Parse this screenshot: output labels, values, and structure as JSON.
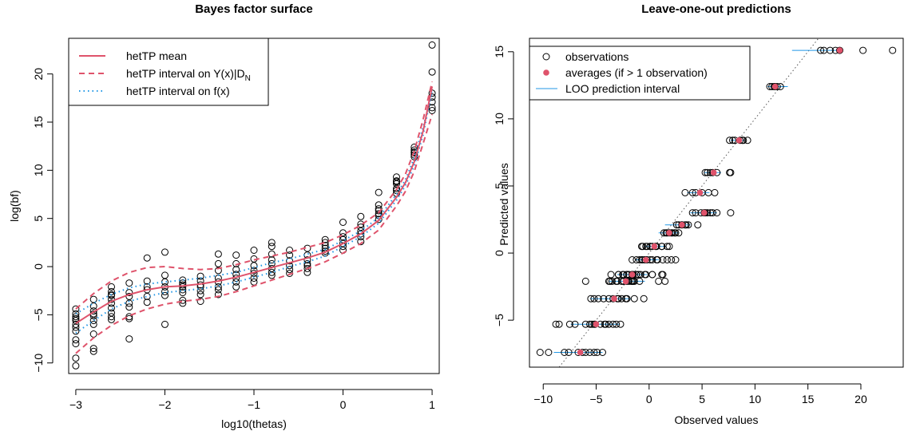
{
  "colors": {
    "mean": "#DF536B",
    "interval": "#DF536B",
    "latent": "#2297E6",
    "obs": "#000000",
    "avg": "#DF536B",
    "loo": "#2297E6",
    "dots": "#555555"
  },
  "chart_data": [
    {
      "type": "scatter",
      "title": "Bayes factor surface",
      "xlabel": "log10(thetas)",
      "ylabel": "log(bf)",
      "xlim": [
        -3.08,
        1.08
      ],
      "ylim": [
        -11.1,
        23.7
      ],
      "xticks": [
        -3,
        -2,
        -1,
        0,
        1
      ],
      "yticks": [
        -10,
        -5,
        0,
        5,
        10,
        15,
        20
      ],
      "legend": {
        "position": "top-left",
        "entries": [
          {
            "label": "hetTP mean",
            "style": "solid"
          },
          {
            "label": "hetTP interval on Y(x)|D",
            "sub": "N",
            "style": "dashed"
          },
          {
            "label": "hetTP interval on f(x)",
            "style": "dotted"
          }
        ]
      },
      "points": {
        "x": [
          -3,
          -3,
          -3,
          -3,
          -3,
          -3,
          -3,
          -3,
          -3,
          -3,
          -3,
          -3,
          -2.8,
          -2.8,
          -2.8,
          -2.8,
          -2.8,
          -2.8,
          -2.8,
          -2.8,
          -2.8,
          -2.8,
          -2.6,
          -2.6,
          -2.6,
          -2.6,
          -2.6,
          -2.6,
          -2.6,
          -2.6,
          -2.6,
          -2.6,
          -2.4,
          -2.4,
          -2.4,
          -2.4,
          -2.4,
          -2.4,
          -2.4,
          -2.4,
          -2.2,
          -2.2,
          -2.2,
          -2.2,
          -2.2,
          -2.2,
          -2,
          -2,
          -2,
          -2,
          -2,
          -2,
          -2,
          -1.8,
          -1.8,
          -1.8,
          -1.8,
          -1.8,
          -1.8,
          -1.8,
          -1.8,
          -1.6,
          -1.6,
          -1.6,
          -1.6,
          -1.6,
          -1.6,
          -1.6,
          -1.4,
          -1.4,
          -1.4,
          -1.4,
          -1.4,
          -1.4,
          -1.4,
          -1.4,
          -1.2,
          -1.2,
          -1.2,
          -1.2,
          -1.2,
          -1.2,
          -1.2,
          -1,
          -1,
          -1,
          -1,
          -1,
          -1,
          -1,
          -0.8,
          -0.8,
          -0.8,
          -0.8,
          -0.8,
          -0.8,
          -0.8,
          -0.8,
          -0.6,
          -0.6,
          -0.6,
          -0.6,
          -0.6,
          -0.6,
          -0.4,
          -0.4,
          -0.4,
          -0.4,
          -0.4,
          -0.4,
          -0.4,
          -0.2,
          -0.2,
          -0.2,
          -0.2,
          -0.2,
          -0.2,
          0,
          0,
          0,
          0,
          0,
          0,
          0,
          0.2,
          0.2,
          0.2,
          0.2,
          0.2,
          0.2,
          0.2,
          0.4,
          0.4,
          0.4,
          0.4,
          0.4,
          0.4,
          0.4,
          0.6,
          0.6,
          0.6,
          0.6,
          0.6,
          0.6,
          0.6,
          0.8,
          0.8,
          0.8,
          0.8,
          0.8,
          0.8,
          1,
          1,
          1,
          1,
          1,
          1,
          1
        ],
        "y": [
          -4.4,
          -4.9,
          -5.2,
          -5.6,
          -6.0,
          -6.3,
          -6.7,
          -7.6,
          -8.0,
          -9.5,
          -10.3,
          -5.4,
          -3.4,
          -4.1,
          -4.6,
          -5.1,
          -5.6,
          -6.0,
          -7.0,
          -8.5,
          -8.8,
          -4.9,
          -2.1,
          -2.6,
          -3.0,
          -3.4,
          -3.8,
          -4.3,
          -4.8,
          -5.2,
          -5.5,
          -2.9,
          -1.7,
          -2.7,
          -3.1,
          -3.8,
          -4.2,
          -5.2,
          -5.4,
          -7.5,
          0.9,
          -1.5,
          -2.1,
          -2.4,
          -3.1,
          -3.7,
          1.5,
          -0.9,
          -1.6,
          -2.1,
          -2.6,
          -3.0,
          -6.0,
          -1.4,
          -1.7,
          -2.1,
          -2.4,
          -2.7,
          -3.5,
          -3.8,
          -1.9,
          -1.0,
          -1.5,
          -1.9,
          -2.1,
          -2.5,
          -2.9,
          -3.6,
          1.3,
          0.3,
          -0.4,
          -1.2,
          -1.6,
          -2.1,
          -2.4,
          -2.9,
          1.2,
          0.3,
          -0.3,
          -0.8,
          -1.2,
          -1.6,
          -2.1,
          1.7,
          0.8,
          0.1,
          -0.4,
          -0.7,
          -1.2,
          -1.6,
          2.5,
          2.1,
          1.3,
          0.7,
          0.3,
          -0.2,
          -0.6,
          -0.9,
          1.7,
          1.2,
          0.6,
          0.1,
          -0.3,
          -0.7,
          1.9,
          1.2,
          0.7,
          0.3,
          0.1,
          -0.2,
          -0.6,
          2.8,
          2.5,
          2.2,
          1.9,
          1.6,
          1.4,
          4.6,
          3.5,
          3.1,
          2.8,
          2.4,
          2.1,
          1.7,
          5.2,
          4.4,
          4.1,
          3.7,
          3.4,
          3.1,
          2.6,
          7.7,
          6.4,
          6.0,
          5.8,
          5.5,
          5.3,
          4.9,
          9.3,
          8.9,
          8.6,
          8.1,
          7.9,
          7.6,
          8.8,
          12.4,
          12.1,
          11.8,
          11.6,
          11.4,
          11.9,
          23.0,
          20.2,
          18.0,
          17.6,
          17.1,
          16.5,
          16.2
        ]
      },
      "curve_x": [
        -3,
        -2.8,
        -2.6,
        -2.4,
        -2.2,
        -2,
        -1.8,
        -1.6,
        -1.4,
        -1.2,
        -1,
        -0.8,
        -0.6,
        -0.4,
        -0.2,
        0,
        0.2,
        0.4,
        0.6,
        0.7,
        0.8,
        0.9,
        1
      ],
      "series": [
        {
          "role": "mean",
          "y": [
            -5.9,
            -4.7,
            -3.6,
            -2.9,
            -2.4,
            -2.1,
            -2.0,
            -1.8,
            -1.5,
            -1.1,
            -0.6,
            -0.1,
            0.4,
            0.9,
            1.5,
            2.4,
            3.4,
            4.8,
            7.2,
            8.7,
            10.9,
            14.1,
            18.7
          ]
        },
        {
          "role": "y-upper",
          "y": [
            -4.4,
            -2.8,
            -1.5,
            -0.6,
            -0.1,
            0.0,
            -0.2,
            -0.3,
            -0.2,
            0.2,
            0.7,
            1.1,
            1.5,
            2.0,
            2.5,
            3.3,
            4.3,
            5.6,
            8.0,
            9.6,
            12.0,
            15.3,
            19.2
          ]
        },
        {
          "role": "y-lower",
          "y": [
            -9.0,
            -7.4,
            -6.1,
            -5.1,
            -4.4,
            -3.9,
            -3.6,
            -3.4,
            -3.1,
            -2.6,
            -2.0,
            -1.4,
            -0.8,
            -0.2,
            0.5,
            1.4,
            2.4,
            3.8,
            6.3,
            7.8,
            9.9,
            12.8,
            15.8
          ]
        },
        {
          "role": "f-upper",
          "y": [
            -4.9,
            -3.8,
            -2.9,
            -2.2,
            -1.8,
            -1.6,
            -1.4,
            -1.2,
            -0.9,
            -0.6,
            -0.1,
            0.4,
            0.8,
            1.3,
            1.8,
            2.7,
            3.7,
            5.1,
            7.5,
            9.0,
            11.3,
            14.5,
            18.1
          ]
        },
        {
          "role": "f-lower",
          "y": [
            -6.9,
            -5.6,
            -4.4,
            -3.6,
            -3.1,
            -2.7,
            -2.5,
            -2.3,
            -2.0,
            -1.6,
            -1.1,
            -0.6,
            0.0,
            0.5,
            1.1,
            2.1,
            3.1,
            4.5,
            6.9,
            8.4,
            10.5,
            13.7,
            18.3
          ]
        }
      ]
    },
    {
      "type": "scatter",
      "title": "Leave-one-out predictions",
      "xlabel": "Observed values",
      "ylabel": "Predicted values",
      "xlim": [
        -11.3,
        24.0
      ],
      "ylim": [
        -8.5,
        16.0
      ],
      "xticks": [
        -10,
        -5,
        0,
        5,
        10,
        15,
        20
      ],
      "yticks": [
        -5,
        0,
        5,
        10,
        15
      ],
      "legend": {
        "position": "top-left",
        "entries": [
          {
            "label": "observations",
            "style": "open-circle"
          },
          {
            "label": "averages (if > 1 observation)",
            "style": "filled-circle"
          },
          {
            "label": "LOO prediction interval",
            "style": "line"
          }
        ]
      },
      "levels": [
        {
          "pred": -7.4,
          "obs": [
            -10.3,
            -9.5,
            -8.0,
            -7.6,
            -6.7,
            -6.3,
            -6.0,
            -5.6,
            -5.2,
            -4.9,
            -4.4
          ],
          "avg": -6.5,
          "lo": -9.0,
          "hi": -4.4
        },
        {
          "pred": -5.3,
          "obs": [
            -8.8,
            -8.5,
            -7.0,
            -6.0,
            -5.6,
            -5.1,
            -4.6,
            -4.1,
            -3.4,
            -7.5,
            -5.4,
            -5.2,
            -4.2,
            -3.8,
            -3.1,
            -2.7
          ],
          "avg": -5.0,
          "lo": -7.4,
          "hi": -2.8
        },
        {
          "pred": -3.4,
          "obs": [
            -5.5,
            -5.2,
            -4.8,
            -4.3,
            -3.8,
            -3.4,
            -3.0,
            -2.6,
            -2.1,
            -2.9,
            -2.2,
            -1.4,
            -0.5
          ],
          "avg": -3.3,
          "lo": -5.6,
          "hi": -1.7
        },
        {
          "pred": -2.1,
          "obs": [
            -3.7,
            -3.1,
            -2.4,
            -2.1,
            -1.5,
            0.9,
            -6.0,
            -3.0,
            -2.6,
            -1.6,
            -0.9,
            1.5,
            -3.8,
            -3.5,
            -2.4,
            -1.9,
            -1.7,
            -1.4
          ],
          "avg": -2.2,
          "lo": -3.8,
          "hi": -0.4
        },
        {
          "pred": -1.6,
          "obs": [
            -3.6,
            -2.9,
            -2.5,
            -2.1,
            -1.9,
            -1.5,
            -1.0,
            -2.9,
            -2.4,
            -2.1,
            -1.6,
            -1.2,
            -0.4,
            0.3,
            1.3,
            -2.1,
            -1.6,
            -1.2,
            -0.8,
            -0.3,
            0.3,
            1.2
          ],
          "avg": -1.6,
          "lo": -3.0,
          "hi": -0.2
        },
        {
          "pred": -0.5,
          "obs": [
            -1.6,
            -1.2,
            -0.7,
            -0.4,
            0.1,
            0.8,
            1.7,
            -0.9,
            -0.6,
            -0.2,
            0.3,
            0.7,
            1.3,
            2.1,
            2.5
          ],
          "avg": -0.3,
          "lo": -1.3,
          "hi": 0.9
        },
        {
          "pred": 0.5,
          "obs": [
            -0.7,
            -0.3,
            0.1,
            0.6,
            1.2,
            1.7,
            -0.6,
            -0.2,
            0.1,
            0.3,
            0.7,
            1.2,
            1.9
          ],
          "avg": 0.5,
          "lo": -0.4,
          "hi": 1.6
        },
        {
          "pred": 1.5,
          "obs": [
            1.4,
            1.6,
            1.9,
            2.2,
            2.5,
            2.8,
            1.7,
            2.1,
            2.4
          ],
          "avg": 1.9,
          "lo": 0.9,
          "hi": 2.8
        },
        {
          "pred": 2.1,
          "obs": [
            2.8,
            3.1,
            3.5,
            4.6,
            2.6,
            3.1,
            3.4,
            3.7
          ],
          "avg": 3.1,
          "lo": 1.5,
          "hi": 3.9
        },
        {
          "pred": 3.0,
          "obs": [
            4.1,
            4.4,
            5.2,
            4.9,
            5.3,
            5.5,
            5.8,
            6.0,
            6.4,
            7.7
          ],
          "avg": 5.2,
          "lo": 3.9,
          "hi": 6.4
        },
        {
          "pred": 4.5,
          "obs": [
            6.2,
            4.4,
            5.0,
            5.6,
            3.4,
            4.1
          ],
          "avg": 4.8,
          "lo": 3.6,
          "hi": 5.7
        },
        {
          "pred": 6.0,
          "obs": [
            5.3,
            5.5,
            5.8,
            6.0,
            6.4,
            7.7,
            7.6
          ],
          "avg": 6.1,
          "lo": 5.2,
          "hi": 6.8
        },
        {
          "pred": 8.4,
          "obs": [
            7.6,
            7.9,
            8.1,
            8.6,
            8.8,
            8.9,
            9.3
          ],
          "avg": 8.5,
          "lo": 7.7,
          "hi": 9.0
        },
        {
          "pred": 12.4,
          "obs": [
            11.4,
            11.6,
            11.8,
            11.9,
            12.1,
            12.4
          ],
          "avg": 11.9,
          "lo": 11.2,
          "hi": 13.1
        },
        {
          "pred": 15.1,
          "obs": [
            16.2,
            16.5,
            17.1,
            17.6,
            18.0,
            20.2,
            23.0
          ],
          "avg": 18.0,
          "lo": 13.5,
          "hi": 17.8
        }
      ]
    }
  ]
}
